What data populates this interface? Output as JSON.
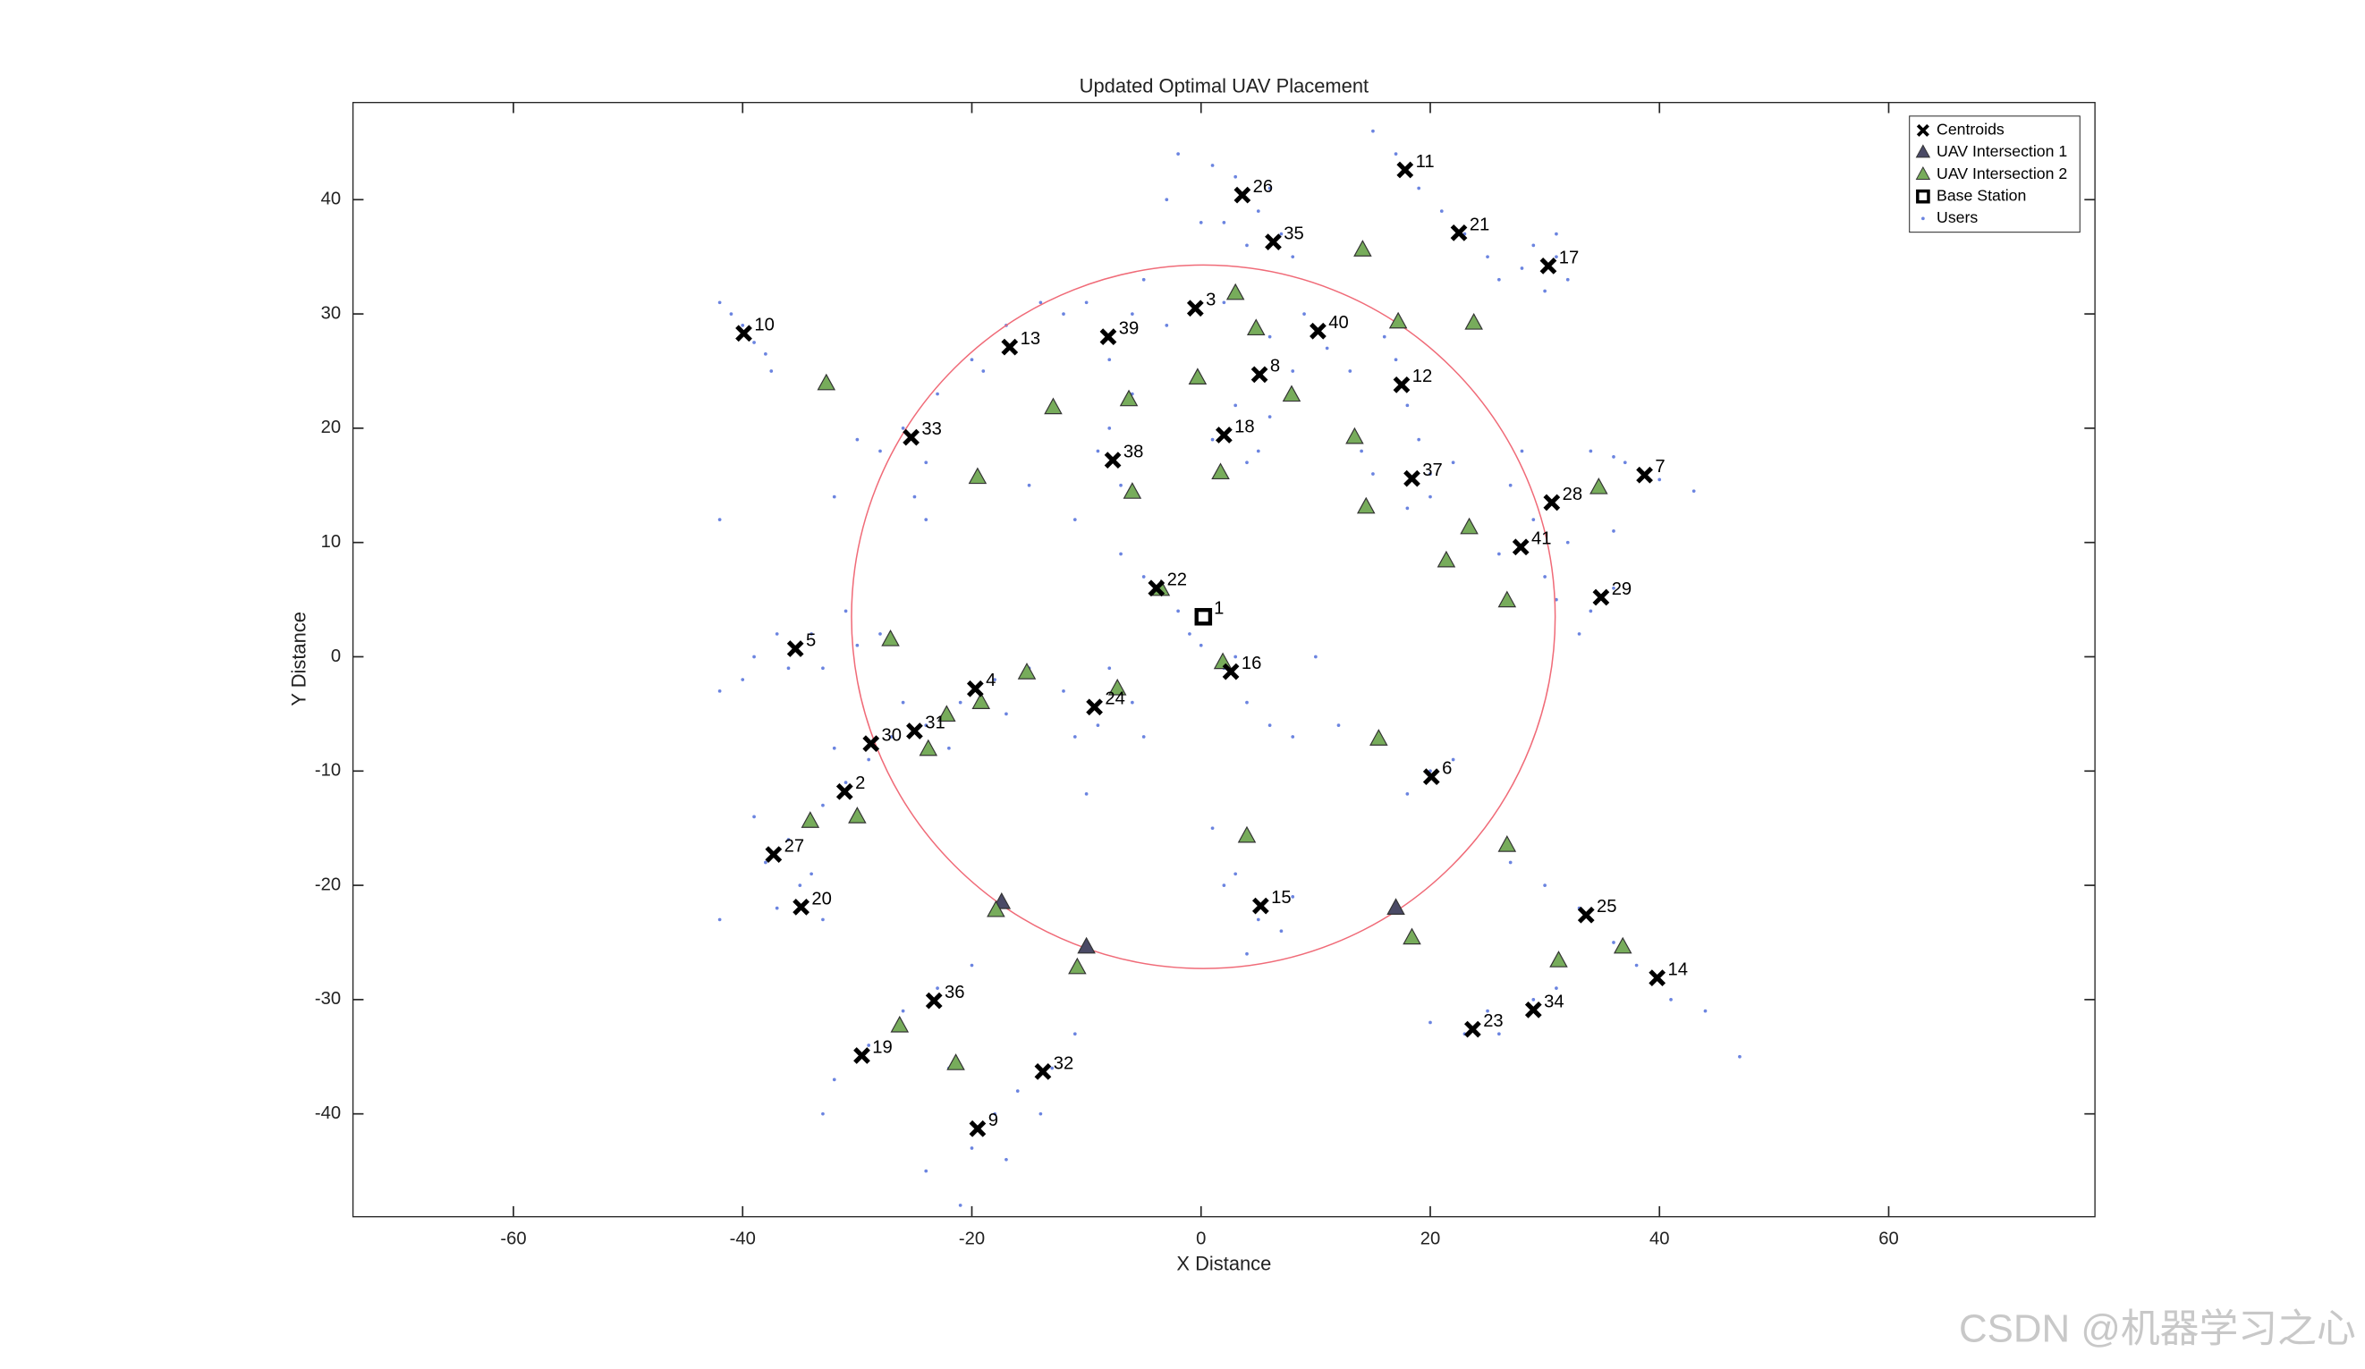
{
  "chart_data": {
    "type": "scatter",
    "title": "Updated Optimal UAV Placement",
    "x_label": "X Distance",
    "y_label": "Y Distance",
    "xlim": [
      -74,
      78
    ],
    "ylim": [
      -49,
      48.5
    ],
    "xticks": [
      -60,
      -40,
      -20,
      0,
      20,
      40,
      60
    ],
    "yticks": [
      -40,
      -30,
      -20,
      -10,
      0,
      10,
      20,
      30,
      40
    ],
    "legend_position": "northeast",
    "coverage_radius": 30.7,
    "coverage_color": "#f06b78",
    "watermark": "CSDN @机器学习之心",
    "series": [
      {
        "name": "Centroids",
        "marker": "x",
        "color": "#000000",
        "x": [
          0.2,
          -31.1,
          -0.5,
          -19.7,
          -35.4,
          20.1,
          38.7,
          5.1,
          -19.5,
          -39.9,
          17.8,
          17.5,
          -16.7,
          39.8,
          5.2,
          2.6,
          30.3,
          2.0,
          -29.6,
          -34.9,
          22.5,
          -3.9,
          23.7,
          -9.3,
          33.6,
          3.6,
          -37.3,
          30.6,
          34.9,
          -28.8,
          -25.0,
          -13.8,
          -25.3,
          29.0,
          6.3,
          -23.3,
          18.4,
          -7.7,
          -8.1,
          10.2,
          27.9
        ],
        "y": [
          3.5,
          -11.8,
          30.5,
          -2.8,
          0.7,
          -10.5,
          15.9,
          24.7,
          -41.3,
          28.3,
          42.6,
          23.8,
          27.1,
          -28.1,
          -21.8,
          -1.3,
          34.2,
          19.4,
          -34.9,
          -21.9,
          37.1,
          6.0,
          -32.6,
          -4.4,
          -22.6,
          40.4,
          -17.3,
          13.5,
          5.2,
          -7.6,
          -6.5,
          -36.3,
          19.2,
          -30.9,
          36.3,
          -30.1,
          15.6,
          17.2,
          28.0,
          28.5,
          9.6
        ],
        "labels": [
          1,
          2,
          3,
          4,
          5,
          6,
          7,
          8,
          9,
          10,
          11,
          12,
          13,
          14,
          15,
          16,
          17,
          18,
          19,
          20,
          21,
          22,
          23,
          24,
          25,
          26,
          27,
          28,
          29,
          30,
          31,
          32,
          33,
          34,
          35,
          36,
          37,
          38,
          39,
          40,
          41
        ]
      },
      {
        "name": "UAV Intersection 1",
        "marker": "triangle",
        "color": "#4a4a66",
        "x": [
          -17.4,
          -10.0,
          17.0
        ],
        "y": [
          -21.5,
          -25.4,
          -22.0
        ]
      },
      {
        "name": "UAV Intersection 2",
        "marker": "triangle",
        "color": "#77ac5b",
        "x": [
          -32.7,
          14.1,
          3.0,
          17.2,
          23.8,
          4.8,
          -0.3,
          -6.3,
          -12.9,
          7.9,
          13.4,
          -19.5,
          1.7,
          -6.0,
          14.4,
          34.7,
          23.4,
          21.4,
          26.7,
          -3.5,
          -27.1,
          1.9,
          -15.2,
          -7.3,
          -19.2,
          -22.2,
          -23.8,
          15.5,
          -34.1,
          -30.0,
          4.0,
          26.7,
          -17.9,
          -10.8,
          18.4,
          31.2,
          36.8,
          -26.3,
          -21.4
        ],
        "y": [
          23.9,
          35.6,
          31.8,
          29.3,
          29.2,
          28.7,
          24.4,
          22.5,
          21.8,
          22.9,
          19.2,
          15.7,
          16.1,
          14.4,
          13.1,
          14.8,
          11.3,
          8.4,
          4.9,
          5.9,
          1.5,
          -0.5,
          -1.4,
          -2.8,
          -4.0,
          -5.1,
          -8.1,
          -7.2,
          -14.4,
          -14.0,
          -15.7,
          -16.5,
          -22.2,
          -27.2,
          -24.6,
          -26.6,
          -25.4,
          -32.3,
          -35.6
        ]
      },
      {
        "name": "Base Station",
        "marker": "square",
        "color": "#000000",
        "x": [
          0.2
        ],
        "y": [
          3.5
        ]
      },
      {
        "name": "Users",
        "marker": "dot",
        "color": "#6b84e0",
        "x": [
          -42,
          -41,
          -40,
          -39,
          -38,
          -37.5,
          15,
          17,
          19,
          21,
          23,
          25,
          26,
          29,
          31,
          32,
          30,
          28,
          31,
          -2,
          1,
          3,
          5,
          7,
          4,
          2,
          6,
          8,
          -3,
          0,
          -10,
          -6,
          -3,
          2,
          -8,
          -12,
          9,
          11,
          13,
          6,
          -5,
          -14,
          -17,
          -20,
          -23,
          -26,
          -28,
          -24,
          -30,
          -24,
          -25,
          -19,
          17,
          18,
          19,
          20,
          16,
          3,
          6,
          1,
          4,
          8,
          5,
          -8,
          -6,
          -7,
          -9,
          15,
          20,
          18,
          22,
          14,
          34,
          37,
          40,
          43,
          36,
          27,
          29,
          32,
          26,
          30,
          34,
          36,
          33,
          31,
          36,
          28,
          -15,
          -11,
          -7,
          -5,
          -2,
          0,
          2,
          4,
          6,
          8,
          -1,
          3,
          -42,
          -39,
          -37,
          -34,
          -31,
          -33,
          -40,
          -36,
          -30,
          -28,
          -15,
          -18,
          -21,
          -24,
          -27,
          -29,
          -31,
          -33,
          -26,
          -22,
          -17,
          -32,
          -12,
          -9,
          -6,
          -8,
          -11,
          -5,
          18,
          20,
          22,
          -39,
          -38,
          -36,
          -35,
          -33,
          -37,
          -34,
          -42,
          1,
          3,
          5,
          7,
          4,
          8,
          2,
          27,
          30,
          33,
          36,
          38,
          41,
          44,
          47,
          20,
          23,
          26,
          29,
          31,
          25,
          -20,
          -23,
          -26,
          -29,
          -32,
          -33,
          -11,
          -13,
          -16,
          -18,
          -20,
          -22,
          -17,
          -21,
          -14,
          -24,
          -32,
          -10,
          12,
          -42,
          10
        ],
        "y": [
          31,
          30,
          29,
          27.5,
          26.5,
          25,
          46,
          44,
          41,
          39,
          37,
          35,
          33,
          36,
          35,
          33,
          32,
          34,
          37,
          44,
          43,
          42,
          39,
          37,
          36,
          38,
          41,
          35,
          40,
          38,
          31,
          30,
          29,
          31,
          26,
          30,
          30,
          27,
          25,
          28,
          33,
          31,
          29,
          26,
          23,
          20,
          18,
          17,
          19,
          12,
          14,
          25,
          26,
          22,
          19,
          16,
          28,
          22,
          21,
          19,
          17,
          25,
          18,
          20,
          23,
          15,
          18,
          16,
          14,
          13,
          17,
          18,
          18,
          17,
          15.5,
          14.5,
          17.5,
          15,
          12,
          10,
          9,
          7,
          4,
          6,
          2,
          5,
          11,
          18,
          15,
          12,
          9,
          7,
          4,
          1,
          -1,
          -4,
          -6,
          -7,
          2,
          0,
          -3,
          0,
          2,
          2,
          4,
          -1,
          -2,
          -1,
          1,
          2,
          -1,
          -2,
          -4,
          -6,
          -7,
          -9,
          -11,
          -13,
          -4,
          -8,
          -5,
          -8,
          -3,
          -6,
          -4,
          -1,
          -7,
          -7,
          -12,
          -10,
          -9,
          -14,
          -18,
          -16,
          -20,
          -23,
          -22,
          -19,
          -23,
          -15,
          -19,
          -23,
          -24,
          -26,
          -21,
          -20,
          -18,
          -20,
          -22,
          -25,
          -27,
          -30,
          -31,
          -35,
          -32,
          -33,
          -33,
          -30,
          -29,
          -31,
          -27,
          -29,
          -31,
          -34,
          -37,
          -40,
          -33,
          -36,
          -38,
          -40,
          -43,
          -36,
          -44,
          -48,
          -40,
          -45,
          14,
          -12,
          -6,
          12,
          0
        ]
      }
    ]
  }
}
